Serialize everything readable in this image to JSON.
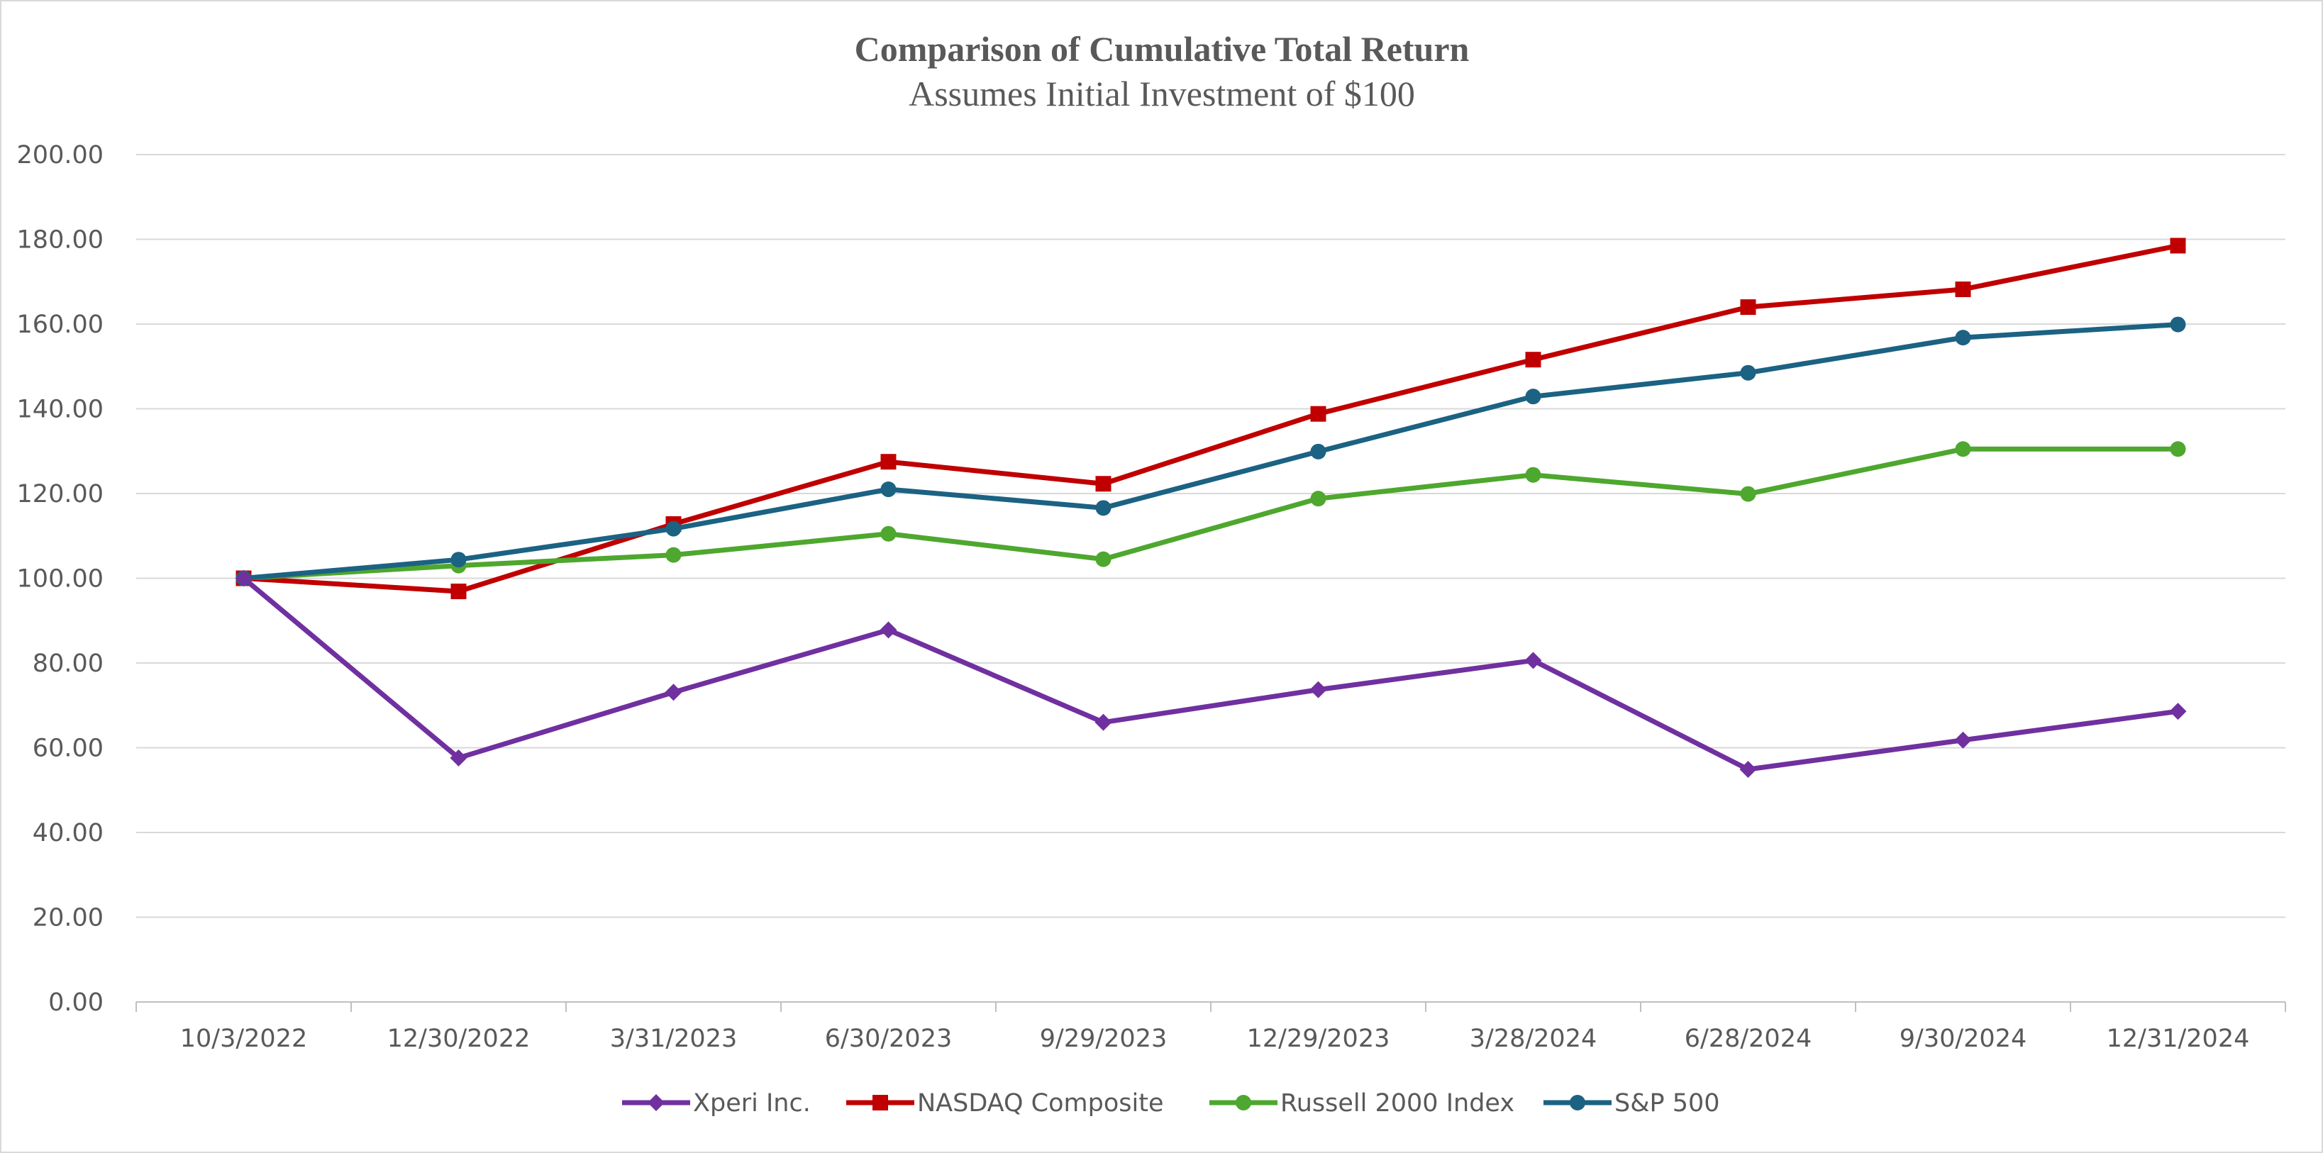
{
  "chart_data": {
    "type": "line",
    "title": "Comparison of Cumulative Total Return",
    "subtitle": "Assumes Initial Investment of $100",
    "xlabel": "",
    "ylabel": "",
    "ylim": [
      0,
      200
    ],
    "yticks": [
      "0.00",
      "20.00",
      "40.00",
      "60.00",
      "80.00",
      "100.00",
      "120.00",
      "140.00",
      "160.00",
      "180.00",
      "200.00"
    ],
    "grid": true,
    "legend_position": "bottom",
    "categories": [
      "10/3/2022",
      "12/30/2022",
      "3/31/2023",
      "6/30/2023",
      "9/29/2023",
      "12/29/2023",
      "3/28/2024",
      "6/28/2024",
      "9/30/2024",
      "12/31/2024"
    ],
    "series": [
      {
        "name": "Xperi Inc.",
        "color": "#7030a0",
        "marker": "diamond",
        "values": [
          100.0,
          57.6,
          73.1,
          87.8,
          66.0,
          73.7,
          80.6,
          54.9,
          61.8,
          68.6
        ]
      },
      {
        "name": "NASDAQ Composite",
        "color": "#c00000",
        "marker": "square",
        "values": [
          100.0,
          96.9,
          112.8,
          127.5,
          122.3,
          138.8,
          151.6,
          164.0,
          168.2,
          178.5
        ]
      },
      {
        "name": "Russell 2000 Index",
        "color": "#4ea72e",
        "marker": "circle",
        "values": [
          100.0,
          103.0,
          105.5,
          110.5,
          104.5,
          118.8,
          124.4,
          119.9,
          130.5,
          130.5
        ]
      },
      {
        "name": "S&P 500",
        "color": "#1b6283",
        "marker": "circle",
        "values": [
          100.0,
          104.4,
          111.7,
          121.0,
          116.6,
          129.9,
          142.9,
          148.5,
          156.8,
          159.9
        ]
      }
    ]
  }
}
